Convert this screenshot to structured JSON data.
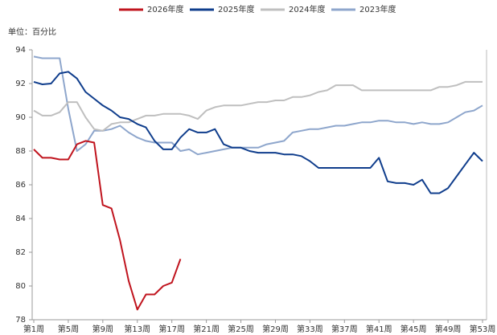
{
  "chart_data": {
    "type": "line",
    "unit_label": "单位：百分比",
    "categories": [
      "第1周",
      null,
      null,
      null,
      "第5周",
      null,
      null,
      null,
      "第9周",
      null,
      null,
      null,
      "第13周",
      null,
      null,
      null,
      "第17周",
      null,
      null,
      null,
      "第21周",
      null,
      null,
      null,
      "第25周",
      null,
      null,
      null,
      "第29周",
      null,
      null,
      null,
      "第33周",
      null,
      null,
      null,
      "第37周",
      null,
      null,
      null,
      "第41周",
      null,
      null,
      null,
      "第45周",
      null,
      null,
      null,
      "第49周",
      null,
      null,
      null,
      "第53周"
    ],
    "series": [
      {
        "name": "2026年度",
        "color": "#c0141e",
        "values": [
          88.1,
          87.6,
          87.6,
          87.5,
          87.5,
          88.4,
          88.6,
          88.5,
          84.8,
          84.6,
          82.7,
          80.3,
          78.6,
          79.5,
          79.5,
          80.0,
          80.2,
          81.6,
          null,
          null,
          null,
          null,
          null,
          null,
          null,
          null,
          null,
          null,
          null,
          null,
          null,
          null,
          null,
          null,
          null,
          null,
          null,
          null,
          null,
          null,
          null,
          null,
          null,
          null,
          null,
          null,
          null,
          null,
          null,
          null,
          null,
          null,
          null
        ]
      },
      {
        "name": "2025年度",
        "color": "#0f3d8c",
        "values": [
          92.1,
          91.95,
          92.0,
          92.6,
          92.7,
          92.3,
          91.5,
          91.1,
          90.7,
          90.4,
          90.0,
          89.9,
          89.6,
          89.4,
          88.6,
          88.1,
          88.1,
          88.8,
          89.3,
          89.1,
          89.1,
          89.3,
          88.4,
          88.2,
          88.2,
          88.0,
          87.9,
          87.9,
          87.9,
          87.8,
          87.8,
          87.7,
          87.4,
          87.0,
          87.0,
          87.0,
          87.0,
          87.0,
          87.0,
          87.0,
          87.6,
          86.2,
          86.1,
          86.1,
          86.0,
          86.3,
          85.5,
          85.5,
          85.8,
          86.5,
          87.2,
          87.9,
          87.4
        ]
      },
      {
        "name": "2024年度",
        "color": "#bfbfbf",
        "values": [
          90.4,
          90.1,
          90.1,
          90.3,
          90.9,
          90.9,
          90.0,
          89.3,
          89.2,
          89.6,
          89.7,
          89.7,
          89.9,
          90.1,
          90.1,
          90.2,
          90.2,
          90.2,
          90.1,
          89.9,
          90.4,
          90.6,
          90.7,
          90.7,
          90.7,
          90.8,
          90.9,
          90.9,
          91.0,
          91.0,
          91.2,
          91.2,
          91.3,
          91.5,
          91.6,
          91.9,
          91.9,
          91.9,
          91.6,
          91.6,
          91.6,
          91.6,
          91.6,
          91.6,
          91.6,
          91.6,
          91.6,
          91.8,
          91.8,
          91.9,
          92.1,
          92.1,
          92.1
        ]
      },
      {
        "name": "2023年度",
        "color": "#8ea6cc",
        "values": [
          93.6,
          93.5,
          93.5,
          93.5,
          90.5,
          88.0,
          88.4,
          89.2,
          89.2,
          89.3,
          89.5,
          89.1,
          88.8,
          88.6,
          88.5,
          88.5,
          88.5,
          88.0,
          88.1,
          87.8,
          87.9,
          88.0,
          88.1,
          88.2,
          88.2,
          88.2,
          88.2,
          88.4,
          88.5,
          88.6,
          89.1,
          89.2,
          89.3,
          89.3,
          89.4,
          89.5,
          89.5,
          89.6,
          89.7,
          89.7,
          89.8,
          89.8,
          89.7,
          89.7,
          89.6,
          89.7,
          89.6,
          89.6,
          89.7,
          90.0,
          90.3,
          90.4,
          90.7
        ]
      }
    ],
    "ylim": [
      78,
      94
    ],
    "yticks": [
      78,
      80,
      82,
      84,
      86,
      88,
      90,
      92,
      94
    ]
  }
}
